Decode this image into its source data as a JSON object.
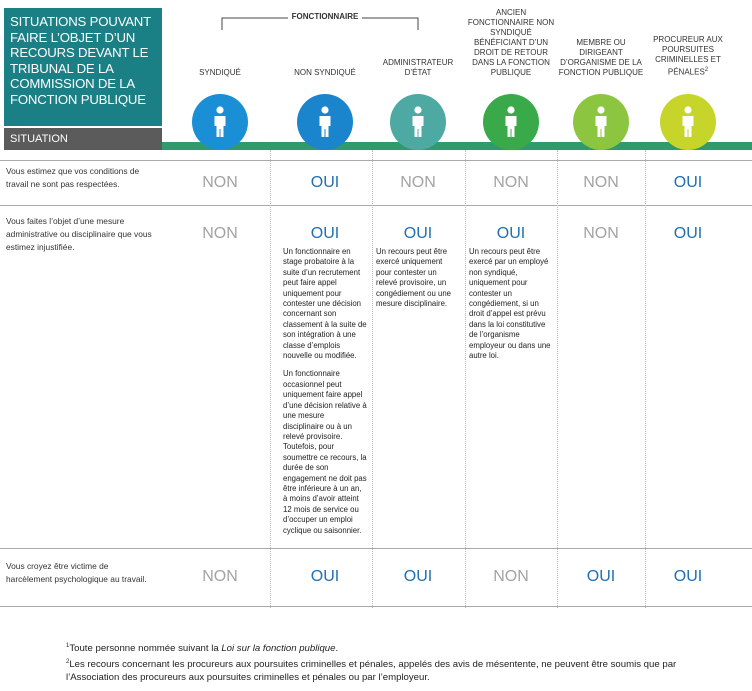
{
  "header": {
    "title": "SITUATIONS POUVANT FAIRE L’OBJET D’UN RECOURS DEVANT LE TRIBUNAL DE LA COMMISSION DE LA FONCTION PUBLIQUE",
    "situation_label": "SITUATION",
    "group_label": "FONCTIONNAIRE"
  },
  "columns": [
    {
      "label": "SYNDIQUÉ",
      "color": "#1a8fd6"
    },
    {
      "label": "NON SYNDIQUÉ",
      "color": "#1a85cc"
    },
    {
      "label": "ADMINISTRATEUR D’ÉTAT",
      "color": "#4ea9a2"
    },
    {
      "label": "ANCIEN FONCTIONNAIRE NON SYNDIQUÉ BÉNÉFICIANT D’UN DROIT DE RETOUR DANS LA FONCTION PUBLIQUE",
      "color": "#39a94a"
    },
    {
      "label": "MEMBRE OU DIRIGEANT D’ORGANISME DE LA FONCTION PUBLIQUE",
      "color": "#8cc641"
    },
    {
      "label": "PROCUREUR AUX POURSUITES CRIMINELLES ET PÉNALES",
      "note": "2",
      "color": "#c7d52b"
    }
  ],
  "rows": [
    {
      "situation": "Vous estimez que vos conditions de travail ne sont pas respectées.",
      "cells": [
        {
          "answer": "NON"
        },
        {
          "answer": "OUI"
        },
        {
          "answer": "NON"
        },
        {
          "answer": "NON"
        },
        {
          "answer": "NON"
        },
        {
          "answer": "OUI"
        }
      ]
    },
    {
      "situation": "Vous faites l’objet d’une mesure administrative ou disciplinaire que vous estimez injustifiée.",
      "cells": [
        {
          "answer": "NON"
        },
        {
          "answer": "OUI",
          "details": [
            "Un fonctionnaire en stage probatoire à la suite d’un recrutement peut faire appel uniquement pour contester une décision concernant son classement à la suite de son intégration à une classe d’emplois nouvelle ou modifiée.",
            "Un fonctionnaire occasionnel peut uniquement faire appel d’une décision relative à une mesure disciplinaire ou à un relevé provisoire. Toutefois, pour soumettre ce recours, la durée de son engagement ne doit pas être inférieure à un an, à moins d’avoir atteint 12 mois de service ou d’occuper un emploi cyclique ou saisonnier."
          ]
        },
        {
          "answer": "OUI",
          "details": [
            "Un recours peut être exercé uniquement pour contester un relevé provisoire, un congédiement ou une mesure disciplinaire."
          ]
        },
        {
          "answer": "OUI",
          "details": [
            "Un recours peut être exercé par un employé non syndiqué, uniquement pour contester un congédiement, si un droit d’appel est prévu dans la loi constitutive de l’organisme employeur ou dans une autre loi."
          ]
        },
        {
          "answer": "NON"
        },
        {
          "answer": "OUI"
        }
      ]
    },
    {
      "situation": "Vous croyez être victime de harcèlement psychologique au travail.",
      "cells": [
        {
          "answer": "NON"
        },
        {
          "answer": "OUI"
        },
        {
          "answer": "OUI"
        },
        {
          "answer": "NON"
        },
        {
          "answer": "OUI"
        },
        {
          "answer": "OUI"
        }
      ]
    }
  ],
  "footnotes": [
    {
      "number": "1",
      "text": "Toute personne nommée suivant la ",
      "italic": "Loi sur la fonction publique",
      "end": "."
    },
    {
      "number": "2",
      "text": "Les recours concernant les procureurs aux poursuites criminelles et pénales, appelés des avis de mésentente, ne peuvent être soumis que par l’Association des procureurs aux poursuites criminelles et pénales ou par l’employeur."
    }
  ]
}
